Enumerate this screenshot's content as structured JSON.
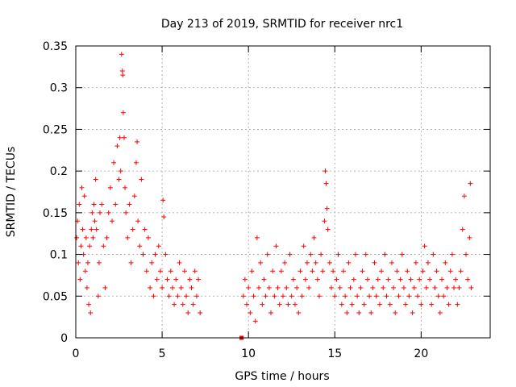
{
  "chart_data": {
    "type": "scatter",
    "title": "Day 213 of 2019, SRMTID for receiver nrc1",
    "xlabel": "GPS time / hours",
    "ylabel": "SRMTID / TECUs",
    "xlim": [
      0,
      24
    ],
    "ylim": [
      0,
      0.35
    ],
    "x_ticks": [
      0,
      5,
      10,
      15,
      20
    ],
    "x_tick_labels": [
      "0",
      "5",
      "10",
      "15",
      "20"
    ],
    "y_ticks": [
      0,
      0.05,
      0.1,
      0.15,
      0.2,
      0.25,
      0.3,
      0.35
    ],
    "y_tick_labels": [
      "0",
      "0.05",
      "0.1",
      "0.15",
      "0.2",
      "0.25",
      "0.3",
      "0.35"
    ],
    "grid": true,
    "marker": "+",
    "marker_color": "#ff0000",
    "gap_marker": {
      "x": 9.6,
      "y": 0.0,
      "marker": "square"
    },
    "series": [
      {
        "name": "SRMTID",
        "points": [
          [
            0.05,
            0.12
          ],
          [
            0.1,
            0.14
          ],
          [
            0.15,
            0.09
          ],
          [
            0.2,
            0.16
          ],
          [
            0.25,
            0.07
          ],
          [
            0.3,
            0.11
          ],
          [
            0.35,
            0.18
          ],
          [
            0.4,
            0.13
          ],
          [
            0.45,
            0.1
          ],
          [
            0.5,
            0.17
          ],
          [
            0.55,
            0.08
          ],
          [
            0.6,
            0.12
          ],
          [
            0.65,
            0.06
          ],
          [
            0.7,
            0.09
          ],
          [
            0.75,
            0.04
          ],
          [
            0.8,
            0.11
          ],
          [
            0.85,
            0.03
          ],
          [
            0.9,
            0.13
          ],
          [
            0.95,
            0.15
          ],
          [
            1.0,
            0.12
          ],
          [
            1.05,
            0.16
          ],
          [
            1.1,
            0.14
          ],
          [
            1.15,
            0.19
          ],
          [
            1.2,
            0.13
          ],
          [
            1.3,
            0.05
          ],
          [
            1.35,
            0.09
          ],
          [
            1.4,
            0.15
          ],
          [
            1.5,
            0.16
          ],
          [
            1.6,
            0.11
          ],
          [
            1.7,
            0.06
          ],
          [
            1.8,
            0.12
          ],
          [
            1.9,
            0.15
          ],
          [
            2.0,
            0.18
          ],
          [
            2.1,
            0.14
          ],
          [
            2.2,
            0.21
          ],
          [
            2.3,
            0.16
          ],
          [
            2.4,
            0.23
          ],
          [
            2.5,
            0.19
          ],
          [
            2.55,
            0.24
          ],
          [
            2.6,
            0.2
          ],
          [
            2.65,
            0.34
          ],
          [
            2.7,
            0.32
          ],
          [
            2.72,
            0.315
          ],
          [
            2.75,
            0.27
          ],
          [
            2.8,
            0.24
          ],
          [
            2.85,
            0.18
          ],
          [
            2.9,
            0.15
          ],
          [
            3.0,
            0.12
          ],
          [
            3.1,
            0.16
          ],
          [
            3.2,
            0.09
          ],
          [
            3.3,
            0.13
          ],
          [
            3.4,
            0.17
          ],
          [
            3.5,
            0.21
          ],
          [
            3.55,
            0.235
          ],
          [
            3.6,
            0.14
          ],
          [
            3.7,
            0.11
          ],
          [
            3.8,
            0.19
          ],
          [
            3.9,
            0.1
          ],
          [
            4.0,
            0.13
          ],
          [
            4.1,
            0.08
          ],
          [
            4.2,
            0.12
          ],
          [
            4.3,
            0.06
          ],
          [
            4.4,
            0.09
          ],
          [
            4.5,
            0.05
          ],
          [
            4.6,
            0.1
          ],
          [
            4.7,
            0.07
          ],
          [
            4.8,
            0.11
          ],
          [
            4.9,
            0.08
          ],
          [
            5.0,
            0.06
          ],
          [
            5.05,
            0.165
          ],
          [
            5.1,
            0.145
          ],
          [
            5.2,
            0.1
          ],
          [
            5.3,
            0.07
          ],
          [
            5.4,
            0.05
          ],
          [
            5.5,
            0.08
          ],
          [
            5.6,
            0.06
          ],
          [
            5.7,
            0.04
          ],
          [
            5.8,
            0.07
          ],
          [
            5.9,
            0.05
          ],
          [
            6.0,
            0.09
          ],
          [
            6.1,
            0.06
          ],
          [
            6.2,
            0.04
          ],
          [
            6.3,
            0.08
          ],
          [
            6.4,
            0.05
          ],
          [
            6.5,
            0.03
          ],
          [
            6.6,
            0.07
          ],
          [
            6.7,
            0.06
          ],
          [
            6.8,
            0.04
          ],
          [
            6.9,
            0.08
          ],
          [
            7.0,
            0.05
          ],
          [
            7.1,
            0.07
          ],
          [
            7.2,
            0.03
          ],
          [
            9.7,
            0.05
          ],
          [
            9.8,
            0.07
          ],
          [
            9.9,
            0.04
          ],
          [
            10.0,
            0.06
          ],
          [
            10.1,
            0.03
          ],
          [
            10.2,
            0.08
          ],
          [
            10.3,
            0.05
          ],
          [
            10.4,
            0.02
          ],
          [
            10.5,
            0.12
          ],
          [
            10.6,
            0.06
          ],
          [
            10.7,
            0.09
          ],
          [
            10.8,
            0.04
          ],
          [
            10.9,
            0.07
          ],
          [
            11.0,
            0.05
          ],
          [
            11.1,
            0.1
          ],
          [
            11.2,
            0.06
          ],
          [
            11.3,
            0.03
          ],
          [
            11.4,
            0.08
          ],
          [
            11.5,
            0.05
          ],
          [
            11.6,
            0.11
          ],
          [
            11.7,
            0.06
          ],
          [
            11.8,
            0.04
          ],
          [
            11.9,
            0.08
          ],
          [
            12.0,
            0.05
          ],
          [
            12.1,
            0.09
          ],
          [
            12.2,
            0.06
          ],
          [
            12.3,
            0.04
          ],
          [
            12.4,
            0.1
          ],
          [
            12.5,
            0.05
          ],
          [
            12.6,
            0.07
          ],
          [
            12.7,
            0.04
          ],
          [
            12.8,
            0.06
          ],
          [
            12.9,
            0.03
          ],
          [
            13.0,
            0.08
          ],
          [
            13.1,
            0.05
          ],
          [
            13.2,
            0.11
          ],
          [
            13.3,
            0.07
          ],
          [
            13.4,
            0.09
          ],
          [
            13.5,
            0.06
          ],
          [
            13.6,
            0.1
          ],
          [
            13.7,
            0.08
          ],
          [
            13.8,
            0.12
          ],
          [
            13.9,
            0.09
          ],
          [
            14.0,
            0.07
          ],
          [
            14.1,
            0.05
          ],
          [
            14.2,
            0.1
          ],
          [
            14.3,
            0.08
          ],
          [
            14.4,
            0.14
          ],
          [
            14.45,
            0.2
          ],
          [
            14.5,
            0.185
          ],
          [
            14.55,
            0.155
          ],
          [
            14.6,
            0.13
          ],
          [
            14.7,
            0.09
          ],
          [
            14.8,
            0.06
          ],
          [
            14.9,
            0.08
          ],
          [
            15.0,
            0.05
          ],
          [
            15.1,
            0.07
          ],
          [
            15.2,
            0.1
          ],
          [
            15.3,
            0.06
          ],
          [
            15.4,
            0.04
          ],
          [
            15.5,
            0.08
          ],
          [
            15.6,
            0.05
          ],
          [
            15.7,
            0.03
          ],
          [
            15.8,
            0.09
          ],
          [
            15.9,
            0.06
          ],
          [
            16.0,
            0.04
          ],
          [
            16.1,
            0.07
          ],
          [
            16.2,
            0.1
          ],
          [
            16.3,
            0.05
          ],
          [
            16.4,
            0.03
          ],
          [
            16.5,
            0.06
          ],
          [
            16.6,
            0.08
          ],
          [
            16.7,
            0.04
          ],
          [
            16.8,
            0.1
          ],
          [
            16.9,
            0.07
          ],
          [
            17.0,
            0.05
          ],
          [
            17.1,
            0.03
          ],
          [
            17.2,
            0.06
          ],
          [
            17.3,
            0.09
          ],
          [
            17.4,
            0.05
          ],
          [
            17.5,
            0.07
          ],
          [
            17.6,
            0.04
          ],
          [
            17.7,
            0.08
          ],
          [
            17.8,
            0.06
          ],
          [
            17.9,
            0.1
          ],
          [
            18.0,
            0.05
          ],
          [
            18.1,
            0.07
          ],
          [
            18.2,
            0.04
          ],
          [
            18.3,
            0.09
          ],
          [
            18.4,
            0.06
          ],
          [
            18.5,
            0.03
          ],
          [
            18.6,
            0.08
          ],
          [
            18.7,
            0.05
          ],
          [
            18.8,
            0.07
          ],
          [
            18.9,
            0.1
          ],
          [
            19.0,
            0.06
          ],
          [
            19.1,
            0.04
          ],
          [
            19.2,
            0.08
          ],
          [
            19.3,
            0.05
          ],
          [
            19.4,
            0.07
          ],
          [
            19.5,
            0.03
          ],
          [
            19.6,
            0.06
          ],
          [
            19.7,
            0.09
          ],
          [
            19.8,
            0.05
          ],
          [
            19.9,
            0.07
          ],
          [
            20.0,
            0.04
          ],
          [
            20.1,
            0.08
          ],
          [
            20.2,
            0.11
          ],
          [
            20.3,
            0.06
          ],
          [
            20.4,
            0.09
          ],
          [
            20.5,
            0.07
          ],
          [
            20.6,
            0.04
          ],
          [
            20.7,
            0.1
          ],
          [
            20.8,
            0.06
          ],
          [
            20.9,
            0.08
          ],
          [
            21.0,
            0.05
          ],
          [
            21.1,
            0.03
          ],
          [
            21.2,
            0.07
          ],
          [
            21.3,
            0.05
          ],
          [
            21.4,
            0.09
          ],
          [
            21.5,
            0.06
          ],
          [
            21.6,
            0.04
          ],
          [
            21.7,
            0.08
          ],
          [
            21.8,
            0.1
          ],
          [
            21.9,
            0.06
          ],
          [
            22.0,
            0.07
          ],
          [
            22.1,
            0.04
          ],
          [
            22.2,
            0.06
          ],
          [
            22.3,
            0.08
          ],
          [
            22.4,
            0.13
          ],
          [
            22.5,
            0.17
          ],
          [
            22.6,
            0.1
          ],
          [
            22.7,
            0.07
          ],
          [
            22.8,
            0.12
          ],
          [
            22.85,
            0.185
          ],
          [
            22.9,
            0.06
          ]
        ]
      }
    ]
  }
}
